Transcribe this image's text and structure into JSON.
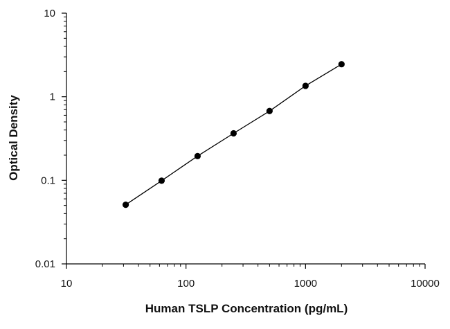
{
  "chart_data": {
    "type": "scatter",
    "title": "",
    "xlabel": "Human TSLP Concentration (pg/mL)",
    "ylabel": "Optical Density",
    "x_scale": "log",
    "y_scale": "log",
    "xlim": [
      10,
      10000
    ],
    "ylim": [
      0.01,
      10
    ],
    "x_ticks": [
      10,
      100,
      1000,
      10000
    ],
    "x_tick_labels": [
      "10",
      "100",
      "1000",
      "10000"
    ],
    "y_ticks": [
      0.01,
      0.1,
      1,
      10
    ],
    "y_tick_labels": [
      "0.01",
      "0.1",
      "1",
      "10"
    ],
    "grid": false,
    "legend": "none",
    "series": [
      {
        "x": [
          31.3,
          62.5,
          125,
          250,
          500,
          1000,
          2000
        ],
        "y": [
          0.051,
          0.099,
          0.195,
          0.365,
          0.675,
          1.35,
          2.45
        ],
        "marker_color": "#000000",
        "line_color": "#000000",
        "fit_line": true
      }
    ]
  }
}
